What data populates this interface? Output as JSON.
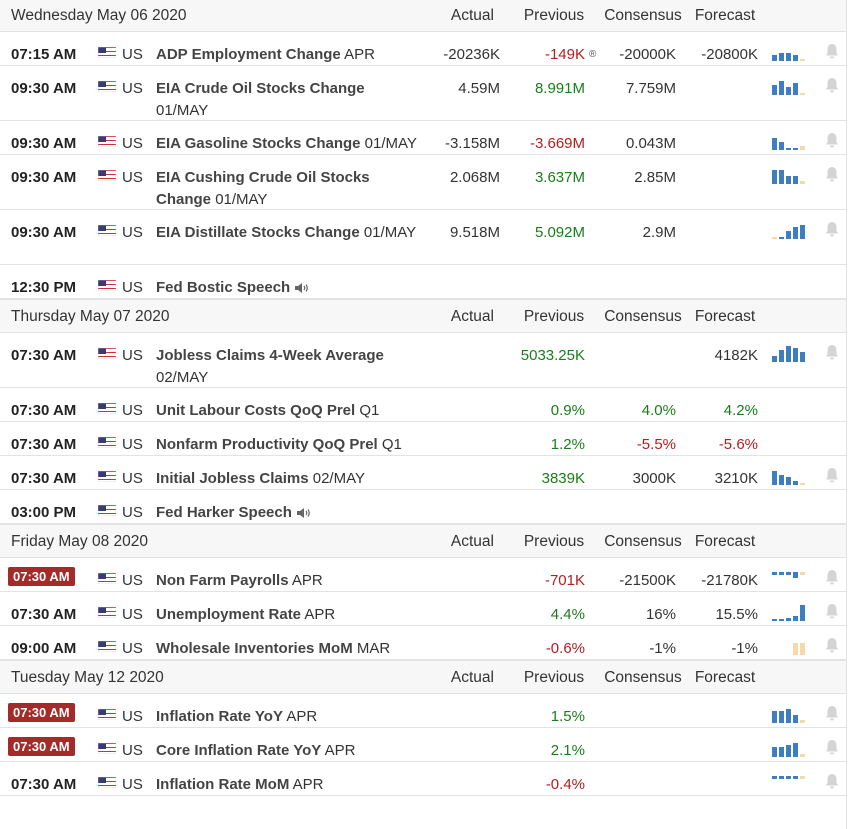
{
  "sections": [
    {
      "date": "Wednesday May 06 2020",
      "headers": {
        "actual": "Actual",
        "previous": "Previous",
        "consensus": "Consensus",
        "forecast": "Forecast"
      },
      "events": [
        {
          "time": "07:15 AM",
          "country": "US",
          "name": "ADP Employment Change",
          "period": "APR",
          "actual": "-20236K",
          "previous": "-149K",
          "previous_class": "neg",
          "revised_mark": "®",
          "consensus": "-20000K",
          "forecast": "-20800K",
          "chart": "bars-up",
          "bell": true
        },
        {
          "time": "09:30 AM",
          "country": "US",
          "name": "EIA Crude Oil Stocks Change",
          "period": "01/MAY",
          "actual": "4.59M",
          "previous": "8.991M",
          "previous_class": "pos",
          "consensus": "7.759M",
          "forecast": "",
          "chart": "bars-mixed",
          "bell": true
        },
        {
          "time": "09:30 AM",
          "country": "US",
          "name": "EIA Gasoline Stocks Change",
          "period": "01/MAY",
          "actual": "-3.158M",
          "previous": "-3.669M",
          "previous_class": "neg",
          "consensus": "0.043M",
          "forecast": "",
          "chart": "bars-down",
          "bell": true
        },
        {
          "time": "09:30 AM",
          "country": "US",
          "name": "EIA Cushing Crude Oil Stocks Change",
          "period": "01/MAY",
          "actual": "2.068M",
          "previous": "3.637M",
          "previous_class": "pos",
          "consensus": "2.85M",
          "forecast": "",
          "chart": "bars-desc",
          "bell": true
        },
        {
          "time": "09:30 AM",
          "country": "US",
          "name": "EIA Distillate Stocks Change",
          "period": "01/MAY",
          "actual": "9.518M",
          "previous": "5.092M",
          "previous_class": "pos",
          "consensus": "2.9M",
          "forecast": "",
          "chart": "bars-rise",
          "bell": true
        },
        {
          "time": "12:30 PM",
          "country": "US",
          "name": "Fed Bostic Speech",
          "period": "",
          "speech": true,
          "actual": "",
          "previous": "",
          "previous_class": "",
          "consensus": "",
          "forecast": "",
          "chart": "",
          "bell": false
        }
      ]
    },
    {
      "date": "Thursday May 07 2020",
      "headers": {
        "actual": "Actual",
        "previous": "Previous",
        "consensus": "Consensus",
        "forecast": "Forecast"
      },
      "events": [
        {
          "time": "07:30 AM",
          "country": "US",
          "name": "Jobless Claims 4-Week Average",
          "period": "02/MAY",
          "actual": "",
          "previous": "5033.25K",
          "previous_class": "pos",
          "consensus": "",
          "forecast": "4182K",
          "chart": "bars-hill",
          "bell": true
        },
        {
          "time": "07:30 AM",
          "country": "US",
          "name": "Unit Labour Costs QoQ Prel",
          "period": "Q1",
          "actual": "",
          "previous": "0.9%",
          "previous_class": "pos",
          "consensus": "4.0%",
          "consensus_class": "pos",
          "forecast": "4.2%",
          "forecast_class": "pos",
          "chart": "",
          "bell": false
        },
        {
          "time": "07:30 AM",
          "country": "US",
          "name": "Nonfarm Productivity QoQ Prel",
          "period": "Q1",
          "actual": "",
          "previous": "1.2%",
          "previous_class": "pos",
          "consensus": "-5.5%",
          "consensus_class": "neg",
          "forecast": "-5.6%",
          "forecast_class": "neg",
          "chart": "",
          "bell": false
        },
        {
          "time": "07:30 AM",
          "country": "US",
          "name": "Initial Jobless Claims",
          "period": "02/MAY",
          "actual": "",
          "previous": "3839K",
          "previous_class": "pos",
          "consensus": "3000K",
          "forecast": "3210K",
          "chart": "bars-down2",
          "bell": true
        },
        {
          "time": "03:00 PM",
          "country": "US",
          "name": "Fed Harker Speech",
          "period": "",
          "speech": true,
          "actual": "",
          "previous": "",
          "previous_class": "",
          "consensus": "",
          "forecast": "",
          "chart": "",
          "bell": false
        }
      ]
    },
    {
      "date": "Friday May 08 2020",
      "headers": {
        "actual": "Actual",
        "previous": "Previous",
        "consensus": "Consensus",
        "forecast": "Forecast"
      },
      "events": [
        {
          "time": "07:30 AM",
          "badge": true,
          "country": "US",
          "name": "Non Farm Payrolls",
          "period": "APR",
          "actual": "",
          "previous": "-701K",
          "previous_class": "neg",
          "consensus": "-21500K",
          "forecast": "-21780K",
          "chart": "bars-neg",
          "bell": true
        },
        {
          "time": "07:30 AM",
          "country": "US",
          "name": "Unemployment Rate",
          "period": "APR",
          "actual": "",
          "previous": "4.4%",
          "previous_class": "pos",
          "consensus": "16%",
          "forecast": "15.5%",
          "chart": "bars-jump",
          "bell": true
        },
        {
          "time": "09:00 AM",
          "country": "US",
          "name": "Wholesale Inventories MoM",
          "period": "MAR",
          "actual": "",
          "previous": "-0.6%",
          "previous_class": "neg",
          "consensus": "-1%",
          "forecast": "-1%",
          "chart": "bars-fc",
          "bell": true
        }
      ]
    },
    {
      "date": "Tuesday May 12 2020",
      "headers": {
        "actual": "Actual",
        "previous": "Previous",
        "consensus": "Consensus",
        "forecast": "Forecast"
      },
      "events": [
        {
          "time": "07:30 AM",
          "badge": true,
          "country": "US",
          "name": "Inflation Rate YoY",
          "period": "APR",
          "actual": "",
          "previous": "1.5%",
          "previous_class": "pos",
          "consensus": "",
          "forecast": "",
          "chart": "bars-infl",
          "bell": true
        },
        {
          "time": "07:30 AM",
          "badge": true,
          "country": "US",
          "name": "Core Inflation Rate YoY",
          "period": "APR",
          "actual": "",
          "previous": "2.1%",
          "previous_class": "pos",
          "consensus": "",
          "forecast": "",
          "chart": "bars-core",
          "bell": true
        },
        {
          "time": "07:30 AM",
          "country": "US",
          "name": "Inflation Rate MoM",
          "period": "APR",
          "actual": "",
          "previous": "-0.4%",
          "previous_class": "neg",
          "consensus": "",
          "forecast": "",
          "chart": "bars-mom",
          "bell": true
        }
      ]
    }
  ],
  "colors": {
    "positive": "#1a7d1a",
    "negative": "#b21f1f",
    "badge": "#a52a2a",
    "bar": "#3d7dc0",
    "forecast_bar": "#f5d9a8"
  },
  "icons": {
    "chart": "mini-bar-chart-icon",
    "bell": "bell-icon",
    "flag": "us-flag-icon",
    "speech": "speaker-icon"
  }
}
